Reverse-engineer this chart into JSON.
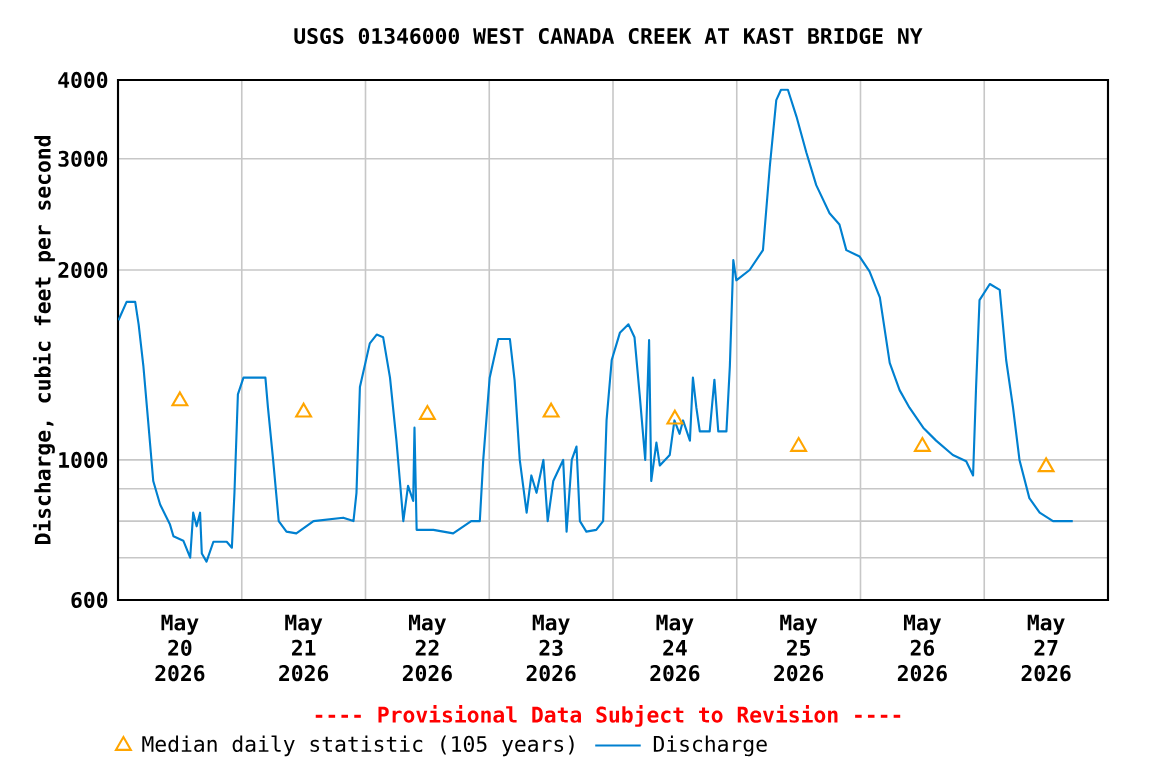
{
  "chart_data": {
    "type": "line",
    "title": "USGS 01346000 WEST CANADA CREEK AT KAST BRIDGE NY",
    "ylabel": "Discharge, cubic feet per second",
    "annotations": [
      "---- Provisional Data Subject to Revision ----"
    ],
    "log": "y",
    "grid": true,
    "legend": "bottom",
    "xlim": [
      "2026-05-20T00:00",
      "2026-05-28T00:00"
    ],
    "xticks": [
      {
        "value": "2026-05-20T12:00",
        "label": "May 20 2026"
      },
      {
        "value": "2026-05-21T12:00",
        "label": "May 21 2026"
      },
      {
        "value": "2026-05-22T12:00",
        "label": "May 22 2026"
      },
      {
        "value": "2026-05-23T12:00",
        "label": "May 23 2026"
      },
      {
        "value": "2026-05-24T12:00",
        "label": "May 24 2026"
      },
      {
        "value": "2026-05-25T12:00",
        "label": "May 25 2026"
      },
      {
        "value": "2026-05-26T12:00",
        "label": "May 26 2026"
      },
      {
        "value": "2026-05-27T12:00",
        "label": "May 27 2026"
      },
      {
        "value": "2026-05-21T00:00",
        "label": null
      },
      {
        "value": "2026-05-22T00:00",
        "label": null
      },
      {
        "value": "2026-05-23T00:00",
        "label": null
      },
      {
        "value": "2026-05-24T00:00",
        "label": null
      },
      {
        "value": "2026-05-25T00:00",
        "label": null
      },
      {
        "value": "2026-05-26T00:00",
        "label": null
      },
      {
        "value": "2026-05-27T00:00",
        "label": null
      }
    ],
    "ylim": [
      600,
      4000
    ],
    "yticks": [
      600,
      {
        "value": 700,
        "label": null
      },
      {
        "value": 800,
        "label": null
      },
      {
        "value": 900,
        "label": null
      },
      1000,
      2000,
      3000,
      4000
    ],
    "series": [
      {
        "name": "Median daily statistic (105 years)",
        "type": "scatter",
        "marker": "triangle",
        "color": "#ffa500",
        "x": [
          "2026-05-20T12:00",
          "2026-05-21T12:00",
          "2026-05-22T12:00",
          "2026-05-23T12:00",
          "2026-05-24T12:00",
          "2026-05-25T12:00",
          "2026-05-26T12:00",
          "2026-05-27T12:00"
        ],
        "values": [
          1240,
          1190,
          1180,
          1190,
          1160,
          1050,
          1050,
          975
        ]
      },
      {
        "name": "Discharge",
        "marker": "none",
        "line_style": "solid",
        "color": "#0080d0",
        "x": [
          "2026-05-20T00:05",
          "2026-05-20T01:40",
          "2026-05-20T03:20",
          "2026-05-20T04:00",
          "2026-05-20T04:55",
          "2026-05-20T05:50",
          "2026-05-20T06:50",
          "2026-05-20T08:10",
          "2026-05-20T10:05",
          "2026-05-20T10:45",
          "2026-05-20T12:40",
          "2026-05-20T14:00",
          "2026-05-20T14:35",
          "2026-05-20T15:15",
          "2026-05-20T15:55",
          "2026-05-20T16:15",
          "2026-05-20T17:10",
          "2026-05-20T18:30",
          "2026-05-20T21:05",
          "2026-05-20T22:05",
          "2026-05-20T22:35",
          "2026-05-20T23:15",
          "2026-05-21T00:20",
          "2026-05-21T01:35",
          "2026-05-21T04:35",
          "2026-05-21T05:05",
          "2026-05-21T06:05",
          "2026-05-21T07:10",
          "2026-05-21T08:40",
          "2026-05-21T10:35",
          "2026-05-21T13:55",
          "2026-05-21T19:40",
          "2026-05-21T21:40",
          "2026-05-21T22:15",
          "2026-05-21T22:55",
          "2026-05-22T00:50",
          "2026-05-22T02:10",
          "2026-05-22T03:25",
          "2026-05-22T04:45",
          "2026-05-22T06:00",
          "2026-05-22T07:20",
          "2026-05-22T08:15",
          "2026-05-22T09:15",
          "2026-05-22T09:30",
          "2026-05-22T09:55",
          "2026-05-22T13:10",
          "2026-05-22T17:00",
          "2026-05-22T20:30",
          "2026-05-22T22:10",
          "2026-05-22T22:50",
          "2026-05-23T00:05",
          "2026-05-23T01:45",
          "2026-05-23T04:00",
          "2026-05-23T04:55",
          "2026-05-23T05:55",
          "2026-05-23T07:15",
          "2026-05-23T08:10",
          "2026-05-23T09:10",
          "2026-05-23T10:30",
          "2026-05-23T11:20",
          "2026-05-23T12:25",
          "2026-05-23T14:20",
          "2026-05-23T15:00",
          "2026-05-23T16:00",
          "2026-05-23T16:55",
          "2026-05-23T17:35",
          "2026-05-23T18:50",
          "2026-05-23T20:45",
          "2026-05-23T22:05",
          "2026-05-23T22:45",
          "2026-05-23T23:45",
          "2026-05-24T01:20",
          "2026-05-24T03:00",
          "2026-05-24T04:10",
          "2026-05-24T05:10",
          "2026-05-24T06:15",
          "2026-05-24T07:00",
          "2026-05-24T07:25",
          "2026-05-24T08:25",
          "2026-05-24T09:05",
          "2026-05-24T11:00",
          "2026-05-24T11:55",
          "2026-05-24T12:55",
          "2026-05-24T13:35",
          "2026-05-24T14:55",
          "2026-05-24T15:30",
          "2026-05-24T16:10",
          "2026-05-24T16:50",
          "2026-05-24T18:45",
          "2026-05-24T19:40",
          "2026-05-24T20:25",
          "2026-05-24T22:00",
          "2026-05-24T22:40",
          "2026-05-24T23:20",
          "2026-05-24T23:55",
          "2026-05-25T02:30",
          "2026-05-25T05:05",
          "2026-05-25T06:25",
          "2026-05-25T07:40",
          "2026-05-25T08:35",
          "2026-05-25T09:55",
          "2026-05-25T11:35",
          "2026-05-25T13:30",
          "2026-05-25T15:25",
          "2026-05-25T18:00",
          "2026-05-25T19:55",
          "2026-05-25T21:15",
          "2026-05-25T23:50",
          "2026-05-26T01:45",
          "2026-05-26T03:45",
          "2026-05-26T05:40",
          "2026-05-26T07:35",
          "2026-05-26T09:30",
          "2026-05-26T12:10",
          "2026-05-26T14:40",
          "2026-05-26T17:55",
          "2026-05-26T20:30",
          "2026-05-26T21:50",
          "2026-05-26T22:25",
          "2026-05-26T23:05",
          "2026-05-27T01:05",
          "2026-05-27T03:00",
          "2026-05-27T04:15",
          "2026-05-27T05:35",
          "2026-05-27T06:50",
          "2026-05-27T08:45",
          "2026-05-27T10:45",
          "2026-05-27T13:20",
          "2026-05-27T17:10"
        ],
        "values": [
          1665,
          1780,
          1780,
          1640,
          1410,
          1155,
          926,
          850,
          790,
          757,
          745,
          700,
          825,
          785,
          825,
          711,
          690,
          742,
          742,
          726,
          887,
          1270,
          1350,
          1350,
          1350,
          1210,
          1000,
          800,
          770,
          765,
          800,
          810,
          800,
          887,
          1305,
          1530,
          1580,
          1565,
          1350,
          1073,
          800,
          910,
          861,
          1125,
          775,
          775,
          765,
          800,
          800,
          1000,
          1350,
          1555,
          1555,
          1337,
          1000,
          825,
          945,
          887,
          1000,
          800,
          926,
          1000,
          770,
          1000,
          1050,
          800,
          770,
          775,
          800,
          1155,
          1440,
          1590,
          1640,
          1565,
          1270,
          1000,
          1548,
          926,
          1065,
          980,
          1018,
          1155,
          1100,
          1155,
          1073,
          1350,
          1210,
          1110,
          1110,
          1340,
          1110,
          1110,
          1410,
          2073,
          1926,
          2000,
          2150,
          2920,
          3717,
          3860,
          3860,
          3500,
          3070,
          2725,
          2460,
          2360,
          2150,
          2100,
          1990,
          1810,
          1425,
          1290,
          1210,
          1125,
          1073,
          1018,
          995,
          945,
          1305,
          1792,
          1900,
          1860,
          1440,
          1210,
          1000,
          870,
          825,
          800,
          800
        ]
      }
    ]
  }
}
